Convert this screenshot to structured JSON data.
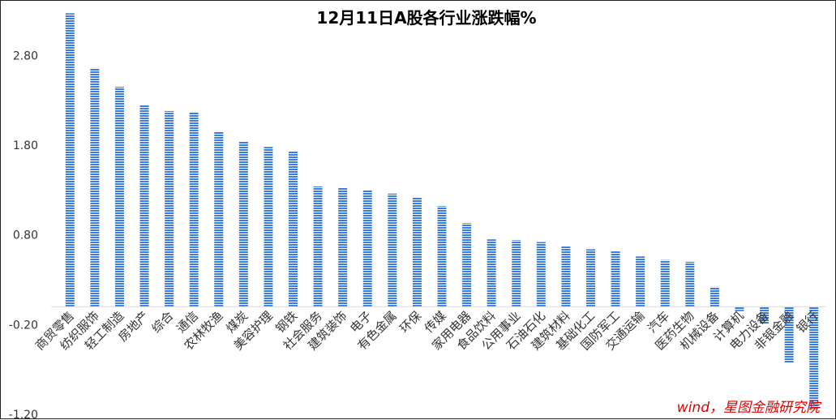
{
  "chart_data": {
    "type": "bar",
    "title": "12月11日A股各行业涨跌幅%",
    "xlabel": "",
    "ylabel": "",
    "ylim": [
      -1.2,
      3.3
    ],
    "yticks": [
      "2.80",
      "1.80",
      "0.80",
      "-0.20",
      "-1.20"
    ],
    "yticks_values": [
      2.8,
      1.8,
      0.8,
      -0.2,
      -1.2
    ],
    "grid": false,
    "legend": "none",
    "bar_color": "#3b7ddd",
    "categories": [
      "商贸零售",
      "纺织服饰",
      "轻工制造",
      "房地产",
      "综合",
      "通信",
      "农林牧渔",
      "煤炭",
      "美容护理",
      "钢铁",
      "社会服务",
      "建筑装饰",
      "电子",
      "有色金属",
      "环保",
      "传媒",
      "家用电器",
      "食品饮料",
      "公用事业",
      "石油石化",
      "建筑材料",
      "基础化工",
      "国防军工",
      "交通运输",
      "汽车",
      "医药生物",
      "机械设备",
      "计算机",
      "电力设备",
      "非银金融",
      "银行"
    ],
    "values": [
      3.27,
      2.66,
      2.45,
      2.25,
      2.18,
      2.17,
      1.95,
      1.84,
      1.78,
      1.73,
      1.34,
      1.33,
      1.3,
      1.26,
      1.22,
      1.12,
      0.93,
      0.75,
      0.74,
      0.72,
      0.67,
      0.64,
      0.62,
      0.56,
      0.52,
      0.5,
      0.22,
      -0.05,
      -0.19,
      -0.63,
      -1.15
    ],
    "source": "wind，星图金融研究院"
  }
}
